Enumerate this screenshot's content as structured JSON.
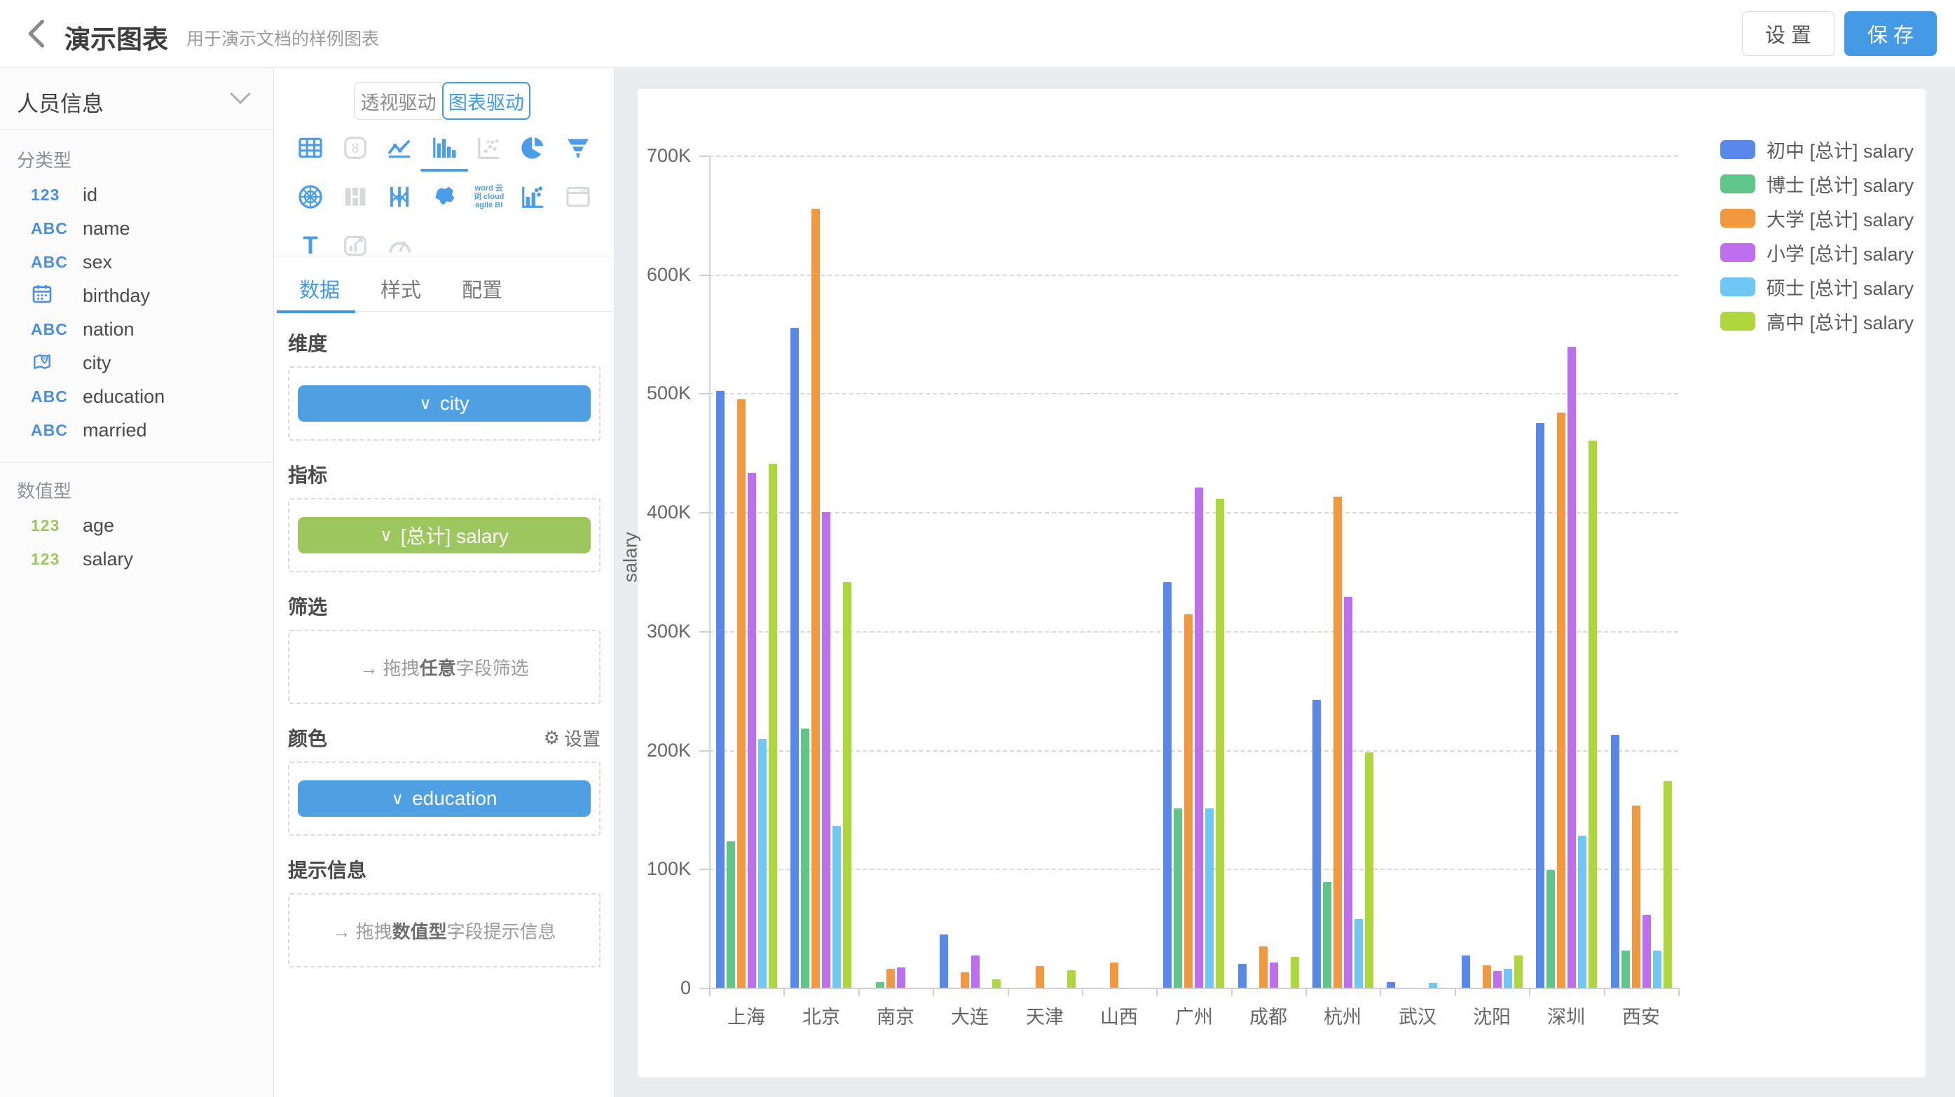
{
  "header": {
    "title": "演示图表",
    "subtitle": "用于演示文档的样例图表",
    "settings_label": "设 置",
    "save_label": "保 存",
    "save_color": "#459AE6"
  },
  "sidebar": {
    "dataset_title": "人员信息",
    "sections": [
      {
        "label": "分类型",
        "icon_color": "#4A90E2",
        "fields": [
          {
            "icon": "numeric-type-icon",
            "glyph": "123",
            "name": "id"
          },
          {
            "icon": "string-type-icon",
            "glyph": "ABC",
            "name": "name"
          },
          {
            "icon": "string-type-icon",
            "glyph": "ABC",
            "name": "sex"
          },
          {
            "icon": "calendar-icon",
            "glyph": "",
            "name": "birthday"
          },
          {
            "icon": "string-type-icon",
            "glyph": "ABC",
            "name": "nation"
          },
          {
            "icon": "map-pin-icon",
            "glyph": "",
            "name": "city"
          },
          {
            "icon": "string-type-icon",
            "glyph": "ABC",
            "name": "education"
          },
          {
            "icon": "string-type-icon",
            "glyph": "ABC",
            "name": "married"
          }
        ]
      },
      {
        "label": "数值型",
        "icon_color": "#9DC75F",
        "fields": [
          {
            "icon": "numeric-type-icon",
            "glyph": "123",
            "name": "age"
          },
          {
            "icon": "numeric-type-icon",
            "glyph": "123",
            "name": "salary"
          }
        ]
      }
    ]
  },
  "panel": {
    "mode_tabs": [
      {
        "label": "透视驱动",
        "active": false
      },
      {
        "label": "图表驱动",
        "active": true
      }
    ],
    "chart_icons": [
      {
        "name": "table",
        "enabled": true,
        "selected": false
      },
      {
        "name": "kpi-card",
        "enabled": false,
        "selected": false
      },
      {
        "name": "line-chart",
        "enabled": true,
        "selected": false
      },
      {
        "name": "bar-chart",
        "enabled": true,
        "selected": true
      },
      {
        "name": "scatter",
        "enabled": false,
        "selected": false
      },
      {
        "name": "pie-chart",
        "enabled": true,
        "selected": false
      },
      {
        "name": "funnel",
        "enabled": true,
        "selected": false
      },
      {
        "name": "radar",
        "enabled": true,
        "selected": false
      },
      {
        "name": "crosstab",
        "enabled": false,
        "selected": false
      },
      {
        "name": "parallel",
        "enabled": true,
        "selected": false
      },
      {
        "name": "china-map",
        "enabled": true,
        "selected": false
      },
      {
        "name": "word-cloud",
        "enabled": true,
        "selected": false
      },
      {
        "name": "combo-chart",
        "enabled": true,
        "selected": false
      },
      {
        "name": "iframe",
        "enabled": false,
        "selected": false
      },
      {
        "name": "text",
        "enabled": true,
        "selected": false
      },
      {
        "name": "image-chart",
        "enabled": false,
        "selected": false
      },
      {
        "name": "gauge",
        "enabled": false,
        "selected": false
      }
    ],
    "word_cloud_icon_text": [
      "word 云",
      "词 cloud",
      "agile BI"
    ],
    "tabs": [
      {
        "label": "数据",
        "active": true
      },
      {
        "label": "样式",
        "active": false
      },
      {
        "label": "配置",
        "active": false
      }
    ],
    "chevron_glyph": "∨",
    "arrow_glyph": "→",
    "gear_glyph": "⚙",
    "sections": {
      "dimension": {
        "label": "维度",
        "chip": {
          "text": "city",
          "color": "#4FA0E3"
        }
      },
      "measure": {
        "label": "指标",
        "chip": {
          "text": "[总计] salary",
          "color": "#9CC75F"
        }
      },
      "filter": {
        "label": "筛选",
        "hint_prefix": "拖拽",
        "hint_bold": "任意",
        "hint_suffix": "字段筛选"
      },
      "color": {
        "label": "颜色",
        "settings_label": "设置",
        "chip": {
          "text": "education",
          "color": "#4FA0E3"
        }
      },
      "tooltip": {
        "label": "提示信息",
        "hint_prefix": "拖拽",
        "hint_bold": "数值型",
        "hint_suffix": "字段提示信息"
      }
    }
  },
  "chart_data": {
    "type": "bar",
    "title": "",
    "xlabel": "",
    "ylabel": "salary",
    "unit": "K (thousands)",
    "ylim": [
      0,
      700
    ],
    "ytick_labels_top_down": [
      "700K",
      "600K",
      "500K",
      "400K",
      "300K",
      "200K",
      "100K",
      "0"
    ],
    "grid": "horizontal dashed",
    "legend_position": "right",
    "categories": [
      "上海",
      "北京",
      "南京",
      "大连",
      "天津",
      "山西",
      "广州",
      "成都",
      "杭州",
      "武汉",
      "沈阳",
      "深圳",
      "西安"
    ],
    "series": [
      {
        "name": "初中 [总计] salary",
        "color": "#5788EA",
        "values": [
          502,
          555,
          0,
          45,
          0,
          0,
          341,
          20,
          242,
          5,
          27,
          475,
          213
        ]
      },
      {
        "name": "博士 [总计] salary",
        "color": "#60C588",
        "values": [
          123,
          218,
          5,
          0,
          0,
          0,
          151,
          0,
          89,
          0,
          0,
          99,
          31
        ]
      },
      {
        "name": "大学 [总计] salary",
        "color": "#F2993F",
        "values": [
          495,
          655,
          16,
          13,
          18,
          21,
          314,
          35,
          413,
          0,
          19,
          484,
          153
        ]
      },
      {
        "name": "小学 [总计] salary",
        "color": "#BE6FF0",
        "values": [
          433,
          400,
          17,
          27,
          0,
          0,
          421,
          21,
          329,
          0,
          14,
          539,
          61
        ]
      },
      {
        "name": "硕士 [总计] salary",
        "color": "#6FC8F4",
        "values": [
          209,
          136,
          0,
          0,
          0,
          0,
          151,
          0,
          58,
          4,
          16,
          128,
          31
        ]
      },
      {
        "name": "高中 [总计] salary",
        "color": "#AED63D",
        "values": [
          441,
          341,
          0,
          7,
          15,
          0,
          411,
          26,
          198,
          0,
          27,
          460,
          174
        ]
      }
    ]
  }
}
